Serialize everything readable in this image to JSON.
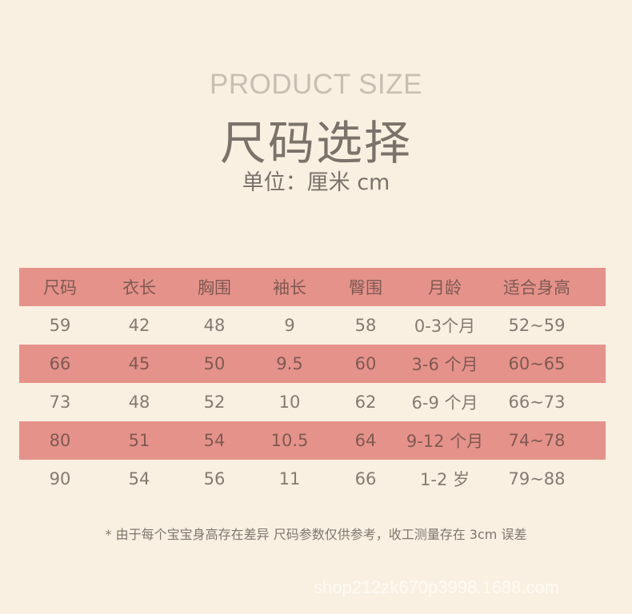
{
  "header": {
    "title_en": "PRODUCT SIZE",
    "title_cn": "尺码选择",
    "unit": "单位：厘米 cm"
  },
  "colors": {
    "background": "#f9f0e1",
    "row_highlight": "#e5928b"
  },
  "table": {
    "columns": [
      "尺码",
      "衣长",
      "胸围",
      "袖长",
      "臀围",
      "月龄",
      "适合身高"
    ],
    "rows": [
      [
        "59",
        "42",
        "48",
        "9",
        "58",
        "0-3个月",
        "52~59"
      ],
      [
        "66",
        "45",
        "50",
        "9.5",
        "60",
        "3-6 个月",
        "60~65"
      ],
      [
        "73",
        "48",
        "52",
        "10",
        "62",
        "6-9 个月",
        "66~73"
      ],
      [
        "80",
        "51",
        "54",
        "10.5",
        "64",
        "9-12 个月",
        "74~78"
      ],
      [
        "90",
        "54",
        "56",
        "11",
        "66",
        "1-2 岁",
        "79~88"
      ]
    ]
  },
  "note": "* 由于每个宝宝身高存在差异 尺码参数仅供参考，收工测量存在 3cm 误差",
  "watermark": "shop212zk670p3998.1688.com"
}
